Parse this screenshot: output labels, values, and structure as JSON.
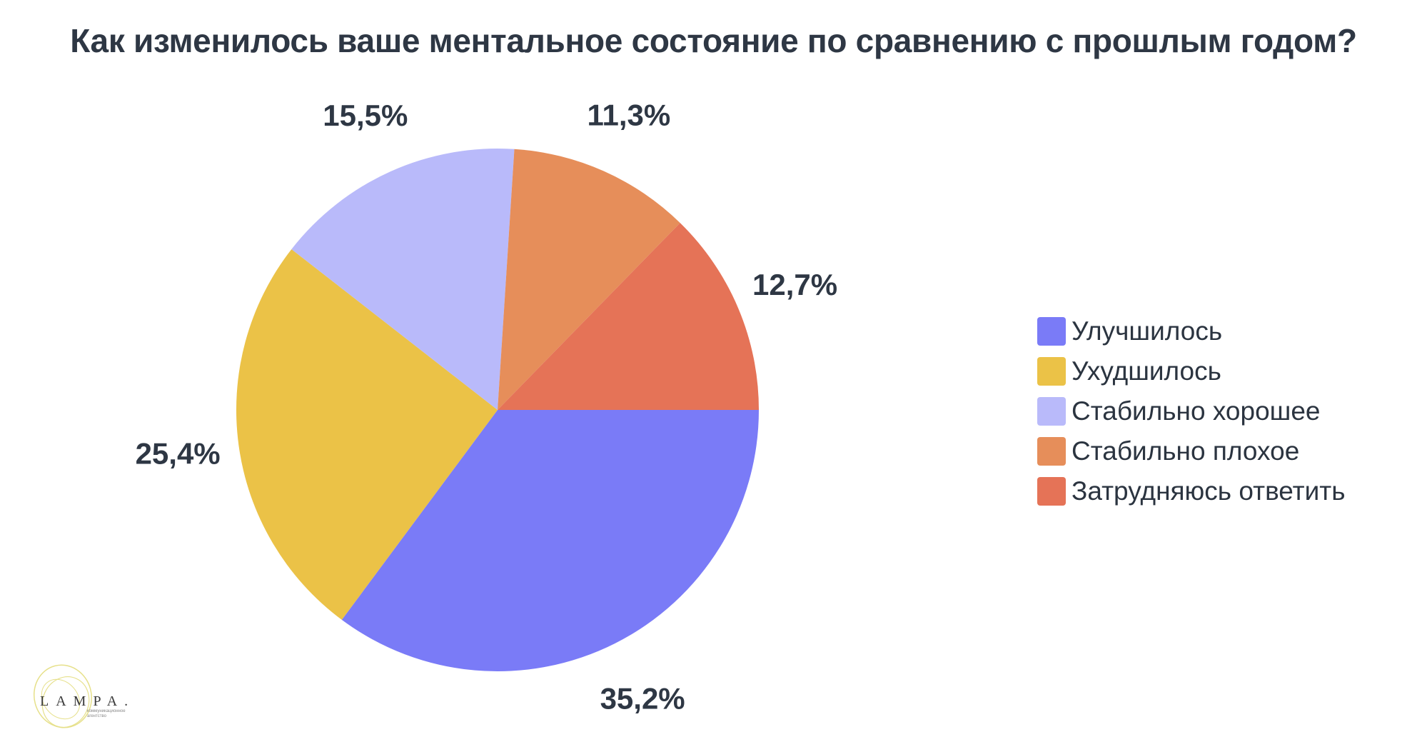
{
  "chart_data": {
    "type": "pie",
    "title": "Как изменилось ваше ментальное состояние по сравнению с прошлым годом?",
    "slices": [
      {
        "name": "Улучшилось",
        "value": 35.2,
        "label": "35,2%",
        "color": "#7a7bf7"
      },
      {
        "name": "Ухудшилось",
        "value": 25.4,
        "label": "25,4%",
        "color": "#ebc247"
      },
      {
        "name": "Стабильно хорошее",
        "value": 15.5,
        "label": "15,5%",
        "color": "#b9bafa"
      },
      {
        "name": "Стабильно плохое",
        "value": 11.3,
        "label": "11,3%",
        "color": "#e68e5a"
      },
      {
        "name": "Затрудняюсь ответить",
        "value": 12.7,
        "label": "12,7%",
        "color": "#e57357"
      }
    ],
    "legend_position": "right"
  },
  "logo": {
    "text": "LAMPA.",
    "subtitle": "коммуникационное агентство",
    "color": "#e6e08a"
  }
}
